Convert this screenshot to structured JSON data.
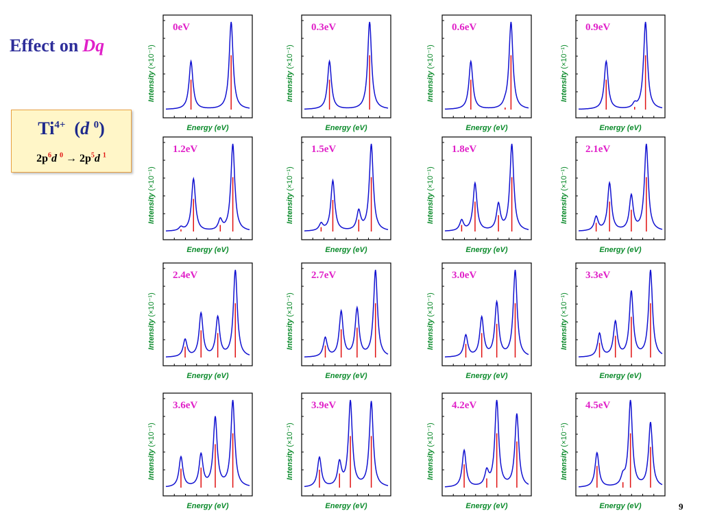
{
  "slide": {
    "title_main": "Effect on",
    "title_symbol": "Dq",
    "ion_symbol": "Ti",
    "ion_charge": "4+",
    "ion_config_open": "(",
    "ion_config_d": "d",
    "ion_config_n": "0",
    "ion_config_close": ")",
    "transition_a": "2p",
    "transition_a_sup": "6",
    "transition_b": "d",
    "transition_b_sup": "0",
    "arrow": "→",
    "transition_c": "2p",
    "transition_c_sup": "5",
    "transition_d": "d",
    "transition_d_sup": "1",
    "page_number": "9"
  },
  "axis_text": {
    "ylabel_italic": "Intensity",
    "ylabel_unit": "(×10⁻¹)",
    "xlabel": "Energy  (eV)"
  },
  "colors": {
    "curve": "#1010d0",
    "sticks": "#e01010",
    "panel_label": "#e020c8",
    "axis_label": "#0a8a2a",
    "title": "#2e2e9a"
  },
  "chart_data": [
    {
      "type": "line",
      "title": "0eV",
      "peaks": [
        [
          0.3,
          0.55
        ],
        [
          0.78,
          1.0
        ]
      ]
    },
    {
      "type": "line",
      "title": "0.3eV",
      "peaks": [
        [
          0.3,
          0.55
        ],
        [
          0.78,
          1.0
        ]
      ]
    },
    {
      "type": "line",
      "title": "0.6eV",
      "peaks": [
        [
          0.31,
          0.55
        ],
        [
          0.72,
          0.03
        ],
        [
          0.79,
          1.0
        ]
      ]
    },
    {
      "type": "line",
      "title": "0.9eV",
      "peaks": [
        [
          0.33,
          0.55
        ],
        [
          0.67,
          0.05
        ],
        [
          0.8,
          1.0
        ]
      ]
    },
    {
      "type": "line",
      "title": "1.2eV",
      "peaks": [
        [
          0.18,
          0.04
        ],
        [
          0.33,
          0.6
        ],
        [
          0.65,
          0.12
        ],
        [
          0.8,
          1.0
        ]
      ]
    },
    {
      "type": "line",
      "title": "1.5eV",
      "peaks": [
        [
          0.2,
          0.08
        ],
        [
          0.34,
          0.58
        ],
        [
          0.65,
          0.22
        ],
        [
          0.8,
          1.0
        ]
      ]
    },
    {
      "type": "line",
      "title": "1.8eV",
      "peaks": [
        [
          0.2,
          0.12
        ],
        [
          0.36,
          0.55
        ],
        [
          0.64,
          0.3
        ],
        [
          0.8,
          1.0
        ]
      ]
    },
    {
      "type": "line",
      "title": "2.1eV",
      "peaks": [
        [
          0.21,
          0.16
        ],
        [
          0.37,
          0.55
        ],
        [
          0.63,
          0.4
        ],
        [
          0.81,
          1.0
        ]
      ]
    },
    {
      "type": "line",
      "title": "2.4eV",
      "peaks": [
        [
          0.23,
          0.2
        ],
        [
          0.42,
          0.5
        ],
        [
          0.62,
          0.45
        ],
        [
          0.83,
          1.0
        ]
      ]
    },
    {
      "type": "line",
      "title": "2.7eV",
      "peaks": [
        [
          0.25,
          0.22
        ],
        [
          0.44,
          0.52
        ],
        [
          0.63,
          0.55
        ],
        [
          0.85,
          1.0
        ]
      ]
    },
    {
      "type": "line",
      "title": "3.0eV",
      "peaks": [
        [
          0.25,
          0.25
        ],
        [
          0.44,
          0.45
        ],
        [
          0.62,
          0.62
        ],
        [
          0.84,
          1.0
        ]
      ]
    },
    {
      "type": "line",
      "title": "3.3eV",
      "peaks": [
        [
          0.25,
          0.27
        ],
        [
          0.44,
          0.4
        ],
        [
          0.63,
          0.75
        ],
        [
          0.86,
          1.0
        ]
      ]
    },
    {
      "type": "line",
      "title": "3.6eV",
      "peaks": [
        [
          0.18,
          0.35
        ],
        [
          0.42,
          0.37
        ],
        [
          0.59,
          0.8
        ],
        [
          0.8,
          1.0
        ]
      ]
    },
    {
      "type": "line",
      "title": "3.9eV",
      "peaks": [
        [
          0.18,
          0.33
        ],
        [
          0.42,
          0.26
        ],
        [
          0.55,
          0.95
        ],
        [
          0.8,
          0.95
        ]
      ]
    },
    {
      "type": "line",
      "title": "4.2eV",
      "peaks": [
        [
          0.23,
          0.43
        ],
        [
          0.5,
          0.17
        ],
        [
          0.62,
          1.0
        ],
        [
          0.86,
          0.85
        ]
      ]
    },
    {
      "type": "line",
      "title": "4.5eV",
      "peaks": [
        [
          0.22,
          0.4
        ],
        [
          0.53,
          0.1
        ],
        [
          0.62,
          1.0
        ],
        [
          0.86,
          0.75
        ]
      ]
    }
  ]
}
